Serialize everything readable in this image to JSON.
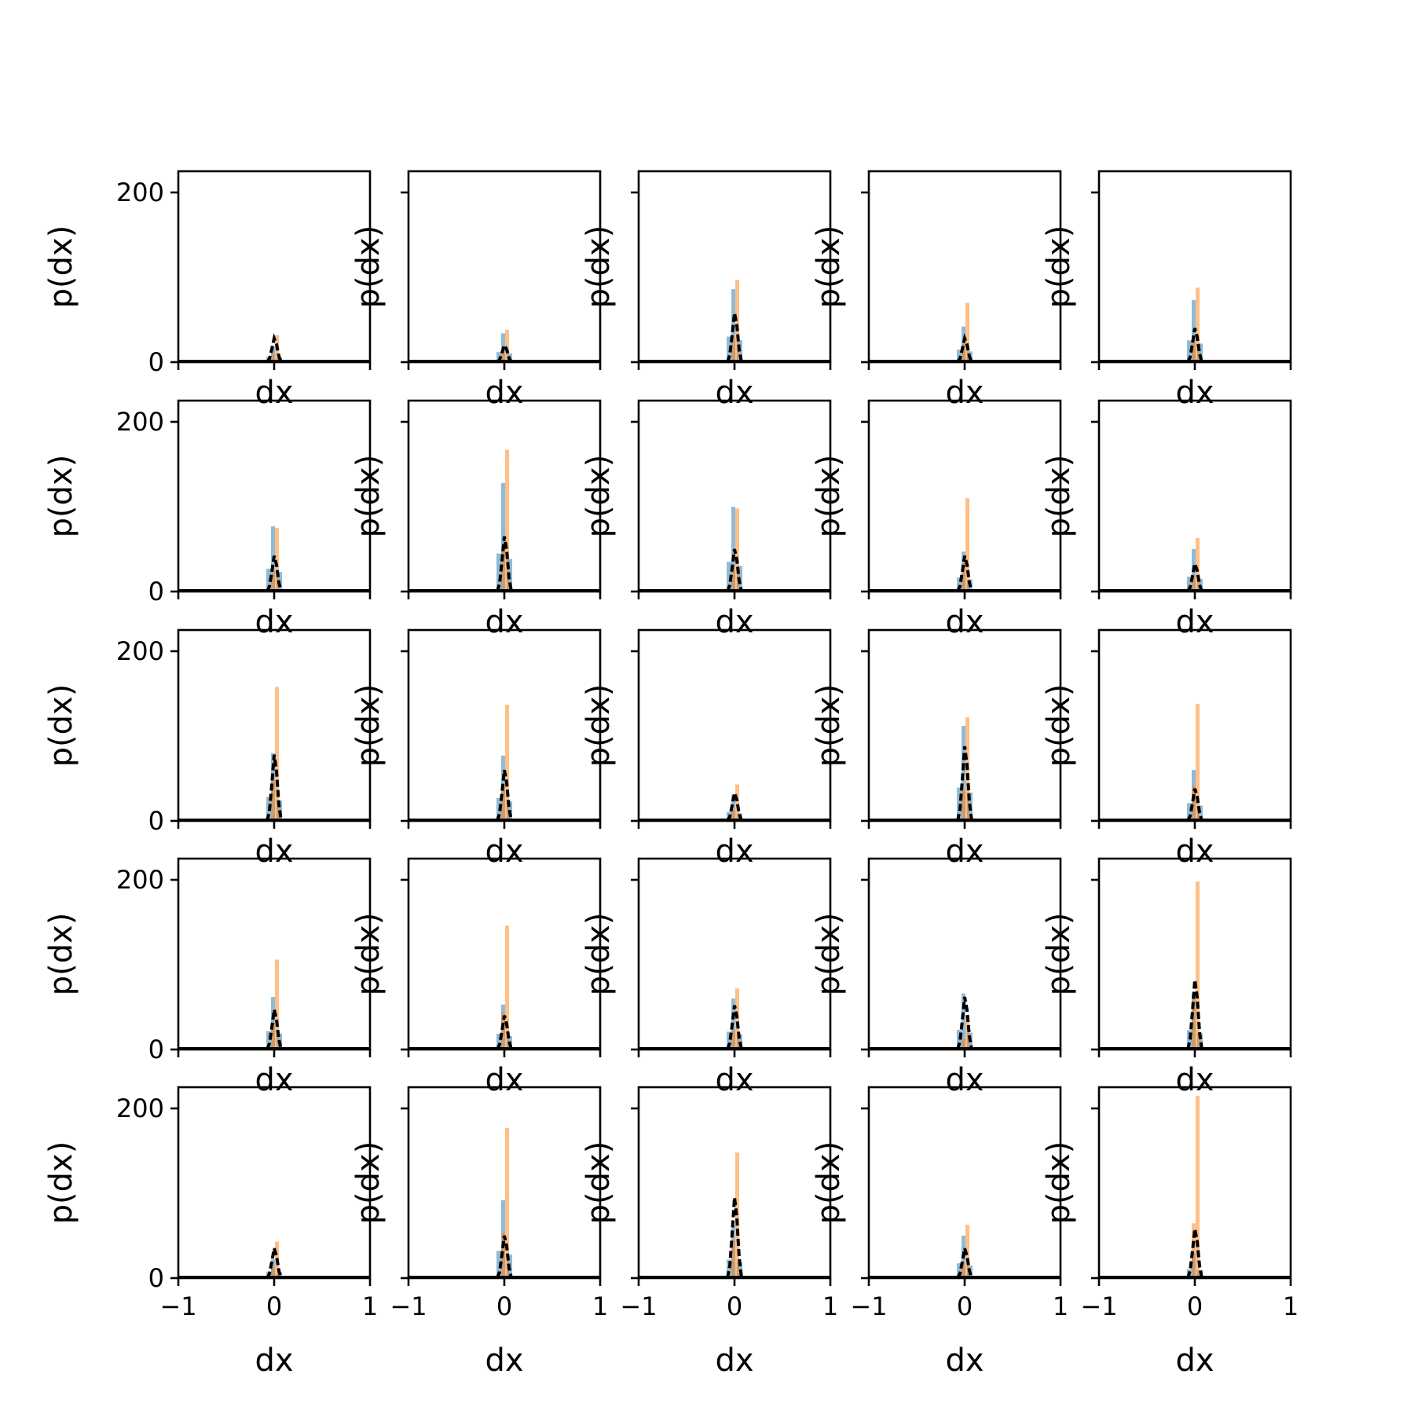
{
  "chart_data": {
    "type": "histogram-grid",
    "rows": 5,
    "cols": 5,
    "xlabel": "dx",
    "ylabel": "p(dx)",
    "xlim": [
      -1,
      1
    ],
    "ylim": [
      0,
      225
    ],
    "xticks": [
      -1,
      0,
      1
    ],
    "yticks": [
      0,
      200
    ],
    "x_tick_labels": [
      "−1",
      "0",
      "1"
    ],
    "y_tick_labels": [
      "0",
      "200"
    ],
    "series_colors": {
      "blue": "#1f77b4",
      "orange": "#ff7f0e",
      "dashed": "#000000"
    },
    "panels": [
      {
        "blue": 18,
        "orange": 32,
        "dashed": 28
      },
      {
        "blue": 34,
        "orange": 38,
        "dashed": 20
      },
      {
        "blue": 86,
        "orange": 97,
        "dashed": 58
      },
      {
        "blue": 42,
        "orange": 70,
        "dashed": 28
      },
      {
        "blue": 73,
        "orange": 88,
        "dashed": 40
      },
      {
        "blue": 77,
        "orange": 75,
        "dashed": 42
      },
      {
        "blue": 128,
        "orange": 167,
        "dashed": 65
      },
      {
        "blue": 100,
        "orange": 98,
        "dashed": 50
      },
      {
        "blue": 47,
        "orange": 110,
        "dashed": 42
      },
      {
        "blue": 50,
        "orange": 63,
        "dashed": 33
      },
      {
        "blue": 80,
        "orange": 158,
        "dashed": 78
      },
      {
        "blue": 77,
        "orange": 137,
        "dashed": 60
      },
      {
        "blue": 30,
        "orange": 43,
        "dashed": 33
      },
      {
        "blue": 112,
        "orange": 122,
        "dashed": 88
      },
      {
        "blue": 60,
        "orange": 138,
        "dashed": 38
      },
      {
        "blue": 62,
        "orange": 106,
        "dashed": 47
      },
      {
        "blue": 53,
        "orange": 146,
        "dashed": 40
      },
      {
        "blue": 60,
        "orange": 72,
        "dashed": 52
      },
      {
        "blue": 66,
        "orange": 40,
        "dashed": 62
      },
      {
        "blue": 65,
        "orange": 198,
        "dashed": 82
      },
      {
        "blue": 22,
        "orange": 43,
        "dashed": 35
      },
      {
        "blue": 92,
        "orange": 177,
        "dashed": 50
      },
      {
        "blue": 62,
        "orange": 148,
        "dashed": 95
      },
      {
        "blue": 50,
        "orange": 63,
        "dashed": 35
      },
      {
        "blue": 30,
        "orange": 215,
        "dashed": 58
      }
    ]
  }
}
